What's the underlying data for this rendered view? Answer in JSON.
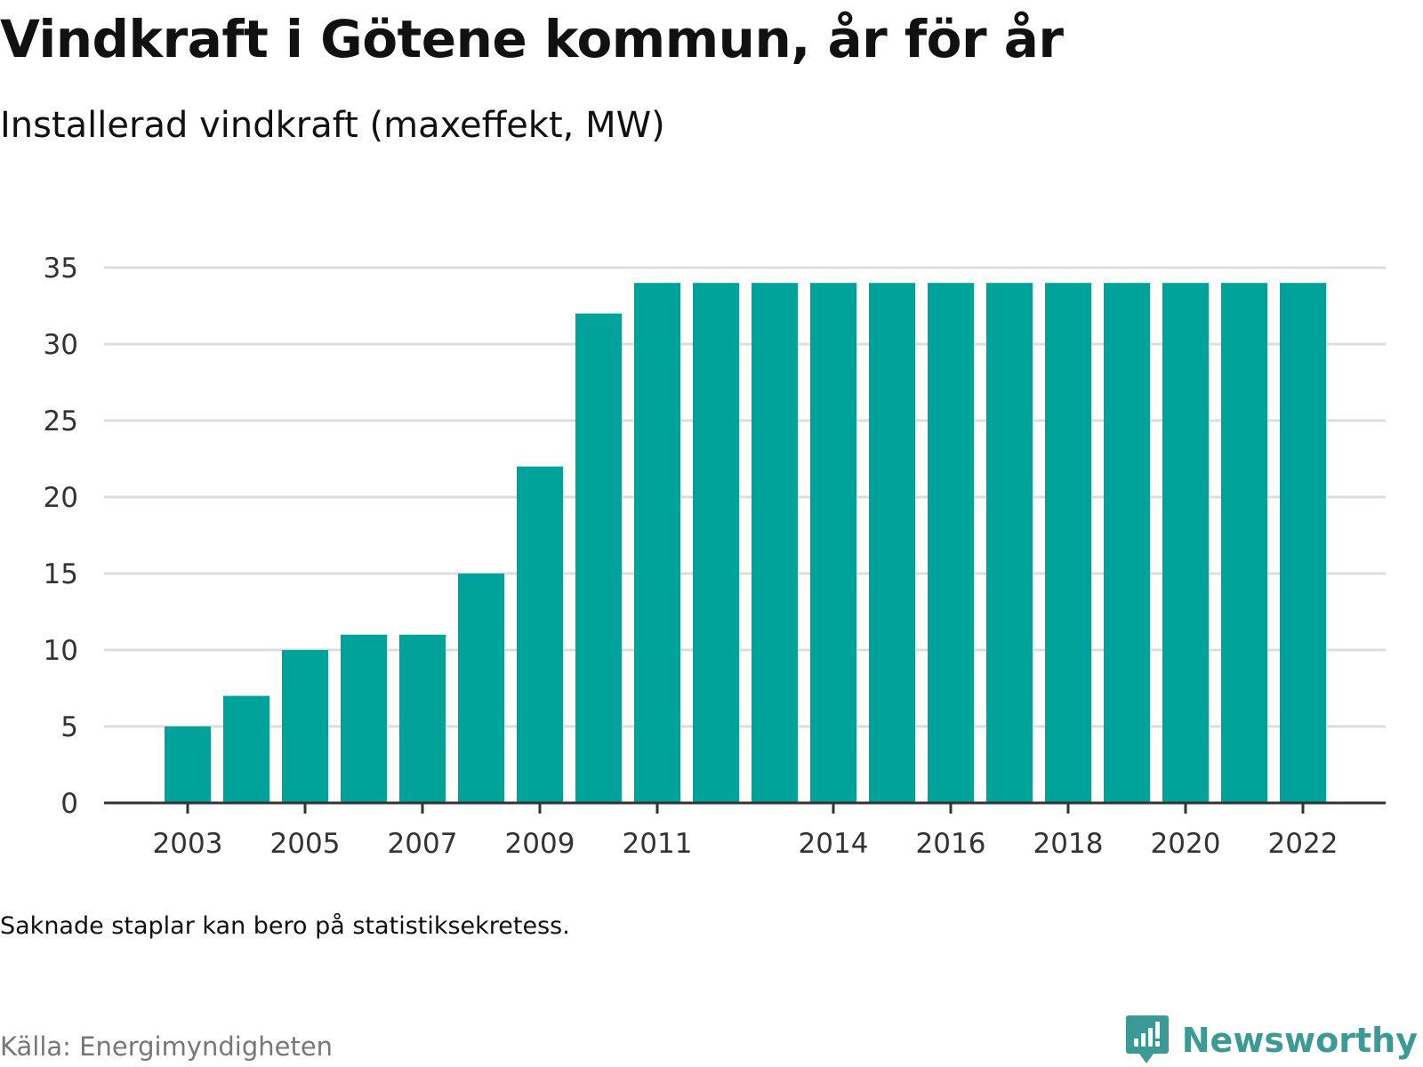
{
  "header": {
    "title": "Vindkraft i Götene kommun, år för år",
    "subtitle": "Installerad vindkraft (maxeffekt, MW)"
  },
  "footer": {
    "note": "Saknade staplar kan bero på statistiksekretess.",
    "source": "Källa: Energimyndigheten",
    "brand": "Newsworthy",
    "brand_color": "#3c9a96"
  },
  "chart_data": {
    "type": "bar",
    "title": "Vindkraft i Götene kommun, år för år",
    "subtitle": "Installerad vindkraft (maxeffekt, MW)",
    "xlabel": "",
    "ylabel": "",
    "categories": [
      "2003",
      "2004",
      "2005",
      "2006",
      "2007",
      "2008",
      "2009",
      "2010",
      "2011",
      "2012",
      "2013",
      "2014",
      "2015",
      "2016",
      "2017",
      "2018",
      "2019",
      "2020",
      "2021",
      "2022"
    ],
    "values": [
      5,
      7,
      10,
      11,
      11,
      15,
      22,
      32,
      34,
      34,
      34,
      34,
      34,
      34,
      34,
      34,
      34,
      34,
      34,
      34
    ],
    "x_tick_labels": [
      "2003",
      "2005",
      "2007",
      "2009",
      "2011",
      "2014",
      "2016",
      "2018",
      "2020",
      "2022"
    ],
    "y_ticks": [
      0,
      5,
      10,
      15,
      20,
      25,
      30,
      35
    ],
    "ylim": [
      0,
      35
    ],
    "grid": true,
    "bar_color": "#00a39a",
    "grid_color": "#dddddd",
    "axis_color": "#333333"
  }
}
